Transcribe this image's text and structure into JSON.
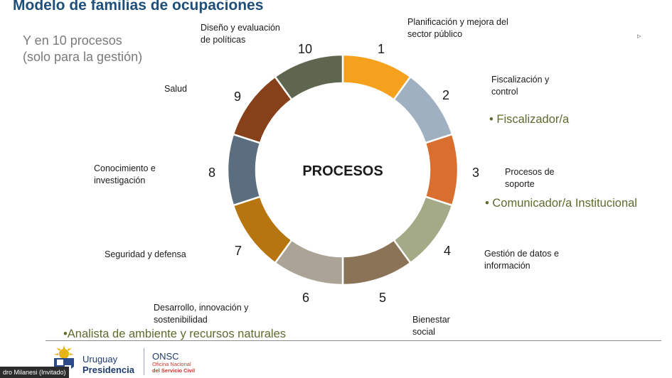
{
  "slide": {
    "title": "Modelo de familias de ocupaciones",
    "subtitle_line1": "Y en 10 procesos",
    "subtitle_line2": "(solo para la gestión)",
    "center_label": "PROCESOS"
  },
  "segments": [
    {
      "number": "1",
      "label_lines": [
        "Planificación y mejora del",
        "sector público"
      ],
      "color": "#f5a11d"
    },
    {
      "number": "2",
      "label_lines": [
        "Fiscalización y",
        "control"
      ],
      "color": "#9fb0c0"
    },
    {
      "number": "3",
      "label_lines": [
        "Procesos de",
        "soporte"
      ],
      "color": "#d96f2e"
    },
    {
      "number": "4",
      "label_lines": [
        "Gestión de datos e",
        "información"
      ],
      "color": "#a4a986"
    },
    {
      "number": "5",
      "label_lines": [
        "Bienestar",
        "social"
      ],
      "color": "#8b7358"
    },
    {
      "number": "6",
      "label_lines": [
        "Desarrollo, innovación y",
        "sostenibilidad"
      ],
      "color": "#aba496"
    },
    {
      "number": "7",
      "label_lines": [
        "Seguridad y defensa"
      ],
      "color": "#b7750f"
    },
    {
      "number": "8",
      "label_lines": [
        "Conocimiento e",
        "investigación"
      ],
      "color": "#5b6e80"
    },
    {
      "number": "9",
      "label_lines": [
        "Salud"
      ],
      "color": "#87411a"
    },
    {
      "number": "10",
      "label_lines": [
        "Diseño y evaluación",
        "de políticas"
      ],
      "color": "#5f6650"
    }
  ],
  "bullets": {
    "b1": "• Fiscalizador/a",
    "b2": "• Comunicador/a Institucional",
    "b3": "•Analista de ambiente y recursos naturales"
  },
  "footer": {
    "brand_line1": "Uruguay",
    "brand_line2": "Presidencia",
    "onsc": "ONSC",
    "onsc_line2": "Oficina Nacional",
    "onsc_line3": "del Servicio Civil",
    "participant": "dro Milanesi (Invitado)"
  },
  "colors": {
    "title": "#1f4e79",
    "bullet": "#5c6b2e"
  }
}
